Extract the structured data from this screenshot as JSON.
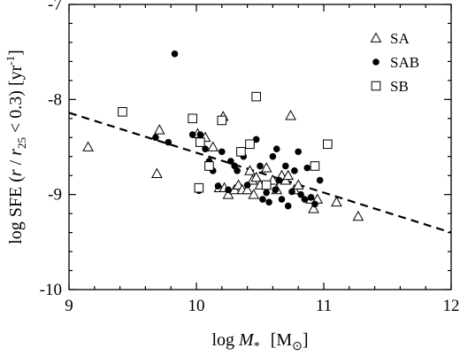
{
  "chart_data": {
    "type": "scatter",
    "xlabel": {
      "pre": "log ",
      "main": "M",
      "sub": "*",
      "unit": "[M",
      "unit_sub": "⊙",
      "unit_end": "]"
    },
    "ylabel": "log SFE  (r / r₂₅ < 0.3)  [yr⁻¹]",
    "xlim": [
      9,
      12
    ],
    "ylim": [
      -10,
      -7
    ],
    "x_ticks": [
      9,
      10,
      11,
      12
    ],
    "y_ticks": [
      -10,
      -9,
      -8,
      -7
    ],
    "x_tick_labels": [
      "9",
      "10",
      "11",
      "12"
    ],
    "y_tick_labels": [
      "-10",
      "-9",
      "-8",
      "-7"
    ],
    "x_minor_step": 0.2,
    "y_minor_step": 0.2,
    "grid": false,
    "legend_position": "top-right",
    "fit_line": {
      "style": "dashed",
      "x": [
        9,
        12
      ],
      "y": [
        -8.14,
        -9.4
      ]
    },
    "series": [
      {
        "name": "SA",
        "marker": "triangle-open",
        "points": [
          [
            9.15,
            -8.5
          ],
          [
            9.69,
            -8.78
          ],
          [
            9.71,
            -8.32
          ],
          [
            10.01,
            -8.36
          ],
          [
            10.07,
            -8.4
          ],
          [
            10.13,
            -8.5
          ],
          [
            10.18,
            -8.93
          ],
          [
            10.21,
            -8.18
          ],
          [
            10.22,
            -8.93
          ],
          [
            10.25,
            -9.0
          ],
          [
            10.3,
            -8.95
          ],
          [
            10.33,
            -8.9
          ],
          [
            10.36,
            -8.95
          ],
          [
            10.4,
            -8.95
          ],
          [
            10.42,
            -8.75
          ],
          [
            10.44,
            -8.85
          ],
          [
            10.45,
            -9.0
          ],
          [
            10.47,
            -8.82
          ],
          [
            10.5,
            -8.9
          ],
          [
            10.55,
            -8.72
          ],
          [
            10.6,
            -8.85
          ],
          [
            10.63,
            -8.95
          ],
          [
            10.67,
            -8.8
          ],
          [
            10.7,
            -8.85
          ],
          [
            10.72,
            -8.8
          ],
          [
            10.74,
            -8.17
          ],
          [
            10.77,
            -8.95
          ],
          [
            10.8,
            -8.9
          ],
          [
            10.9,
            -9.05
          ],
          [
            10.92,
            -9.15
          ],
          [
            10.95,
            -9.05
          ],
          [
            11.1,
            -9.08
          ],
          [
            11.27,
            -9.23
          ]
        ]
      },
      {
        "name": "SAB",
        "marker": "circle-filled",
        "points": [
          [
            9.68,
            -8.4
          ],
          [
            9.78,
            -8.45
          ],
          [
            9.83,
            -7.52
          ],
          [
            9.97,
            -8.37
          ],
          [
            10.02,
            -8.96
          ],
          [
            10.03,
            -8.37
          ],
          [
            10.07,
            -8.52
          ],
          [
            10.1,
            -8.65
          ],
          [
            10.13,
            -8.75
          ],
          [
            10.17,
            -8.91
          ],
          [
            10.2,
            -8.55
          ],
          [
            10.25,
            -8.95
          ],
          [
            10.27,
            -8.65
          ],
          [
            10.3,
            -8.7
          ],
          [
            10.32,
            -8.75
          ],
          [
            10.35,
            -8.55
          ],
          [
            10.37,
            -8.6
          ],
          [
            10.4,
            -8.9
          ],
          [
            10.43,
            -8.48
          ],
          [
            10.47,
            -8.42
          ],
          [
            10.5,
            -8.7
          ],
          [
            10.52,
            -9.05
          ],
          [
            10.55,
            -8.98
          ],
          [
            10.57,
            -9.08
          ],
          [
            10.6,
            -8.6
          ],
          [
            10.62,
            -8.95
          ],
          [
            10.63,
            -8.52
          ],
          [
            10.65,
            -8.85
          ],
          [
            10.67,
            -9.05
          ],
          [
            10.7,
            -8.7
          ],
          [
            10.72,
            -9.12
          ],
          [
            10.75,
            -8.97
          ],
          [
            10.77,
            -8.75
          ],
          [
            10.8,
            -8.55
          ],
          [
            10.82,
            -9.0
          ],
          [
            10.85,
            -9.05
          ],
          [
            10.87,
            -8.72
          ],
          [
            10.9,
            -9.03
          ],
          [
            10.93,
            -9.1
          ],
          [
            10.97,
            -8.85
          ]
        ]
      },
      {
        "name": "SB",
        "marker": "square-open",
        "points": [
          [
            9.42,
            -8.13
          ],
          [
            9.97,
            -8.2
          ],
          [
            10.02,
            -8.93
          ],
          [
            10.03,
            -8.45
          ],
          [
            10.1,
            -8.7
          ],
          [
            10.2,
            -8.22
          ],
          [
            10.35,
            -8.55
          ],
          [
            10.42,
            -8.47
          ],
          [
            10.47,
            -7.97
          ],
          [
            10.55,
            -8.9
          ],
          [
            10.93,
            -8.7
          ],
          [
            11.03,
            -8.47
          ]
        ]
      }
    ]
  }
}
